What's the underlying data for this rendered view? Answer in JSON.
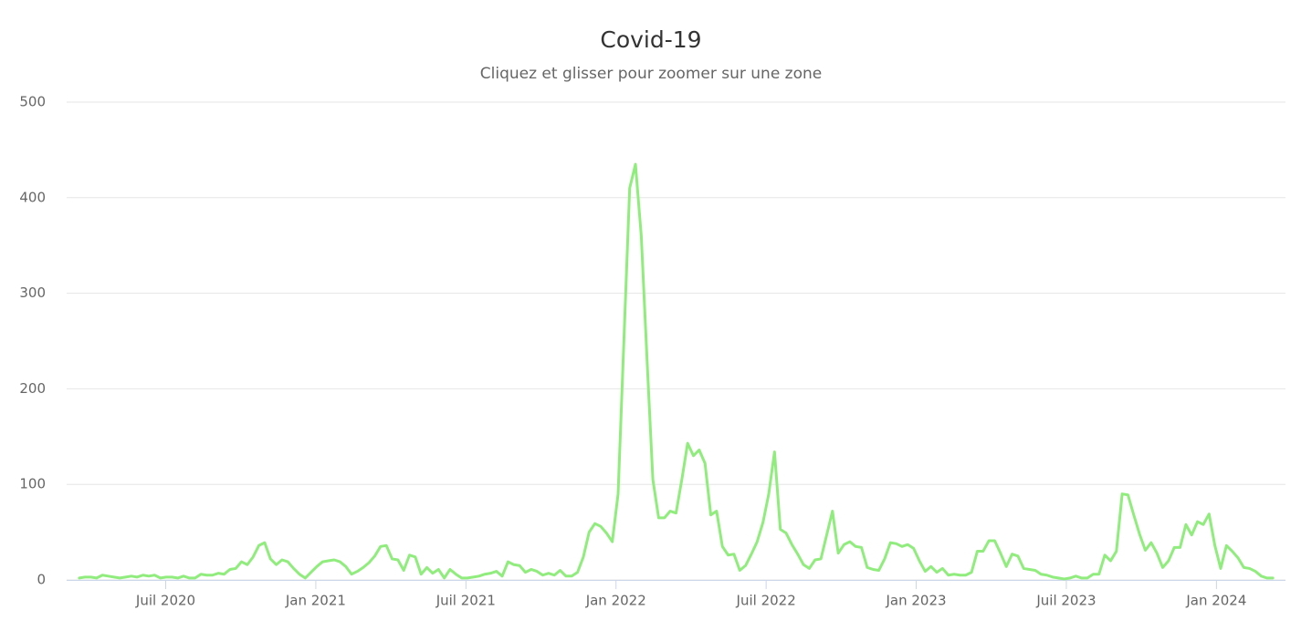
{
  "chart_data": {
    "type": "line",
    "title": "Covid-19",
    "subtitle": "Cliquez et glisser pour zoomer sur une zone",
    "color": "#90ed7d",
    "grid": true,
    "xlim": [
      2020.17,
      2024.23
    ],
    "ylim": [
      0,
      500
    ],
    "yticks": [
      0,
      100,
      200,
      300,
      400,
      500
    ],
    "xticks": [
      {
        "value": 2020.5,
        "label": "Juil 2020"
      },
      {
        "value": 2021,
        "label": "Jan 2021"
      },
      {
        "value": 2021.5,
        "label": "Juil 2021"
      },
      {
        "value": 2022,
        "label": "Jan 2022"
      },
      {
        "value": 2022.5,
        "label": "Juil 2022"
      },
      {
        "value": 2023,
        "label": "Jan 2023"
      },
      {
        "value": 2023.5,
        "label": "Juil 2023"
      },
      {
        "value": 2024,
        "label": "Jan 2024"
      }
    ],
    "x": [
      2020.212,
      2020.2313,
      2020.2506,
      2020.2699,
      2020.2892,
      2020.3085,
      2020.3278,
      2020.3471,
      2020.3664,
      2020.3857,
      2020.405,
      2020.4243,
      2020.4436,
      2020.4629,
      2020.4822,
      2020.5015,
      2020.5208,
      2020.5401,
      2020.5594,
      2020.5787,
      2020.598,
      2020.6173,
      2020.6366,
      2020.6559,
      2020.6752,
      2020.6945,
      2020.7138,
      2020.7331,
      2020.7524,
      2020.7717,
      2020.791,
      2020.8103,
      2020.8296,
      2020.8489,
      2020.8682,
      2020.8875,
      2020.9068,
      2020.9261,
      2020.9454,
      2020.9647,
      2020.984,
      2021.0033,
      2021.0226,
      2021.0419,
      2021.0612,
      2021.0805,
      2021.0998,
      2021.1191,
      2021.1384,
      2021.1577,
      2021.177,
      2021.1963,
      2021.2156,
      2021.2349,
      2021.2542,
      2021.2735,
      2021.2928,
      2021.3121,
      2021.3314,
      2021.3507,
      2021.37,
      2021.3893,
      2021.4086,
      2021.4279,
      2021.4472,
      2021.4665,
      2021.4858,
      2021.5051,
      2021.5244,
      2021.5437,
      2021.563,
      2021.5823,
      2021.6016,
      2021.6209,
      2021.6402,
      2021.6595,
      2021.6788,
      2021.6981,
      2021.7174,
      2021.7367,
      2021.756,
      2021.7753,
      2021.7946,
      2021.8139,
      2021.8332,
      2021.8525,
      2021.8718,
      2021.8911,
      2021.9104,
      2021.9297,
      2021.949,
      2021.9683,
      2021.9876,
      2022.0069,
      2022.0262,
      2022.0455,
      2022.0648,
      2022.0841,
      2022.1034,
      2022.1227,
      2022.142,
      2022.1613,
      2022.1806,
      2022.1999,
      2022.2192,
      2022.2385,
      2022.2578,
      2022.2771,
      2022.2964,
      2022.3157,
      2022.335,
      2022.3543,
      2022.3736,
      2022.3929,
      2022.4122,
      2022.4315,
      2022.4508,
      2022.4701,
      2022.4894,
      2022.5087,
      2022.528,
      2022.5473,
      2022.5666,
      2022.5859,
      2022.6052,
      2022.6245,
      2022.6438,
      2022.6631,
      2022.6824,
      2022.7017,
      2022.721,
      2022.7403,
      2022.7596,
      2022.7789,
      2022.7982,
      2022.8175,
      2022.8368,
      2022.8561,
      2022.8754,
      2022.8947,
      2022.914,
      2022.9333,
      2022.9526,
      2022.9719,
      2022.9912,
      2023.0105,
      2023.0298,
      2023.0491,
      2023.0684,
      2023.0877,
      2023.107,
      2023.1263,
      2023.1456,
      2023.1649,
      2023.1842,
      2023.2035,
      2023.2228,
      2023.2421,
      2023.2614,
      2023.2807,
      2023.3,
      2023.3193,
      2023.3386,
      2023.3579,
      2023.3772,
      2023.3965,
      2023.4158,
      2023.4351,
      2023.4544,
      2023.4737,
      2023.493,
      2023.5123,
      2023.5316,
      2023.5509,
      2023.5702,
      2023.5895,
      2023.6088,
      2023.6281,
      2023.6474,
      2023.6667,
      2023.686,
      2023.7053,
      2023.7246,
      2023.7439,
      2023.7632,
      2023.7825,
      2023.8018,
      2023.8211,
      2023.8404,
      2023.8597,
      2023.879,
      2023.8983,
      2023.9176,
      2023.9369,
      2023.9562,
      2023.9755,
      2023.9948,
      2024.0141,
      2024.0334,
      2024.0527,
      2024.072,
      2024.0913,
      2024.1106,
      2024.1299,
      2024.1492,
      2024.1685,
      2024.1878
    ],
    "values": [
      2,
      3,
      3,
      2,
      5,
      4,
      3,
      2,
      3,
      4,
      3,
      5,
      4,
      5,
      2,
      3,
      3,
      2,
      4,
      2,
      2,
      6,
      5,
      5,
      7,
      6,
      11,
      12,
      19,
      16,
      24,
      36,
      39,
      22,
      16,
      21,
      19,
      12,
      6,
      2,
      8,
      14,
      19,
      20,
      21,
      19,
      14,
      6,
      9,
      13,
      18,
      25,
      35,
      36,
      22,
      21,
      10,
      26,
      24,
      6,
      13,
      7,
      11,
      2,
      11,
      6,
      2,
      2,
      3,
      4,
      6,
      7,
      9,
      4,
      19,
      16,
      15,
      8,
      11,
      9,
      5,
      7,
      5,
      10,
      4,
      4,
      8,
      24,
      50,
      59,
      56,
      49,
      40,
      90,
      250,
      410,
      435,
      360,
      230,
      105,
      65,
      65,
      72,
      70,
      105,
      143,
      130,
      136,
      122,
      68,
      72,
      35,
      26,
      27,
      10,
      15,
      27,
      40,
      60,
      90,
      134,
      53,
      49,
      37,
      27,
      16,
      12,
      21,
      22,
      47,
      72,
      28,
      37,
      40,
      35,
      34,
      13,
      11,
      10,
      22,
      39,
      38,
      35,
      37,
      33,
      20,
      9,
      14,
      8,
      12,
      5,
      6,
      5,
      5,
      8,
      30,
      30,
      41,
      41,
      28,
      14,
      27,
      25,
      12,
      11,
      10,
      6,
      5,
      3,
      2,
      1,
      2,
      4,
      2,
      2,
      6,
      6,
      26,
      20,
      30,
      90,
      89,
      68,
      48,
      31,
      39,
      28,
      13,
      20,
      34,
      34,
      58,
      47,
      61,
      58,
      69,
      36,
      12,
      36,
      30,
      23,
      13,
      12,
      9,
      4,
      2,
      2
    ]
  }
}
